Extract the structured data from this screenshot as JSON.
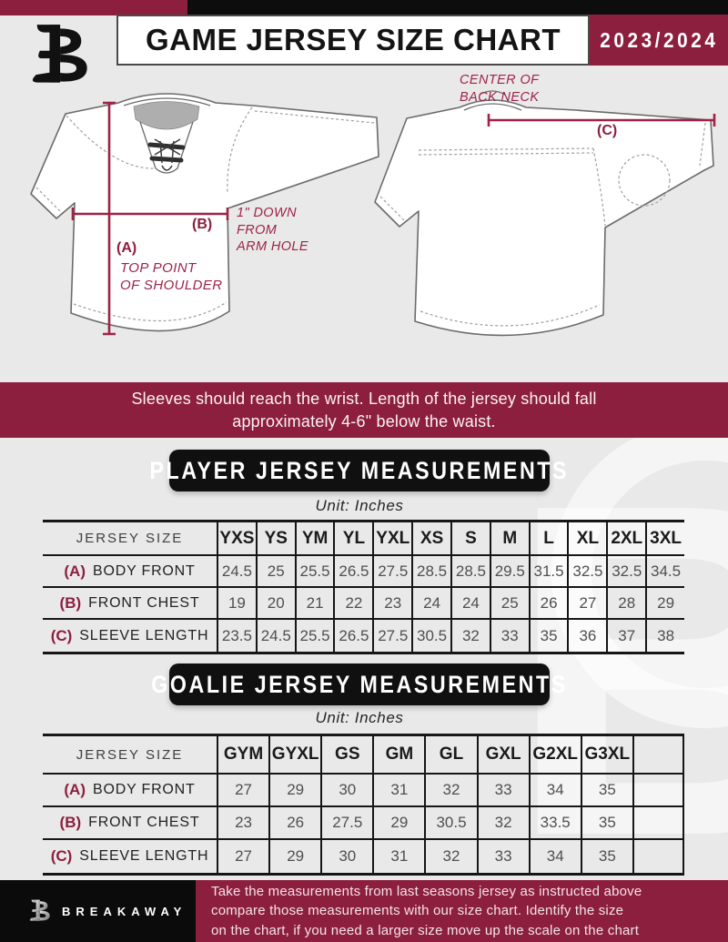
{
  "header": {
    "title": "GAME JERSEY SIZE CHART",
    "season": "2023/2024"
  },
  "brand": {
    "name": "BREAKAWAY"
  },
  "diagram": {
    "front": {
      "marker_a": "(A)",
      "caption_a_line1": "TOP POINT",
      "caption_a_line2": "OF SHOULDER",
      "marker_b": "(B)",
      "caption_b_line1": "1\" DOWN",
      "caption_b_line2": "FROM",
      "caption_b_line3": "ARM HOLE"
    },
    "back": {
      "marker_c": "(C)",
      "caption_c_line1": "CENTER OF",
      "caption_c_line2": "BACK NECK"
    }
  },
  "notice": {
    "line1": "Sleeves should reach the wrist. Length of the jersey should fall",
    "line2": "approximately 4-6\" below the waist."
  },
  "player_section": {
    "title": "PLAYER JERSEY MEASUREMENTS",
    "unit": "Unit: Inches",
    "table": {
      "corner": "JERSEY SIZE",
      "sizes": [
        "YXS",
        "YS",
        "YM",
        "YL",
        "YXL",
        "XS",
        "S",
        "M",
        "L",
        "XL",
        "2XL",
        "3XL"
      ],
      "rows": [
        {
          "key": "(A)",
          "label": "BODY FRONT",
          "values": [
            "24.5",
            "25",
            "25.5",
            "26.5",
            "27.5",
            "28.5",
            "28.5",
            "29.5",
            "31.5",
            "32.5",
            "32.5",
            "34.5"
          ]
        },
        {
          "key": "(B)",
          "label": "FRONT CHEST",
          "values": [
            "19",
            "20",
            "21",
            "22",
            "23",
            "24",
            "24",
            "25",
            "26",
            "27",
            "28",
            "29"
          ]
        },
        {
          "key": "(C)",
          "label": "SLEEVE LENGTH",
          "values": [
            "23.5",
            "24.5",
            "25.5",
            "26.5",
            "27.5",
            "30.5",
            "32",
            "33",
            "35",
            "36",
            "37",
            "38"
          ]
        }
      ]
    }
  },
  "goalie_section": {
    "title": "GOALIE JERSEY MEASUREMENTS",
    "unit": "Unit: Inches",
    "table": {
      "corner": "JERSEY SIZE",
      "sizes": [
        "GYM",
        "GYXL",
        "GS",
        "GM",
        "GL",
        "GXL",
        "G2XL",
        "G3XL",
        ""
      ],
      "rows": [
        {
          "key": "(A)",
          "label": "BODY FRONT",
          "values": [
            "27",
            "29",
            "30",
            "31",
            "32",
            "33",
            "34",
            "35",
            ""
          ]
        },
        {
          "key": "(B)",
          "label": "FRONT CHEST",
          "values": [
            "23",
            "26",
            "27.5",
            "29",
            "30.5",
            "32",
            "33.5",
            "35",
            ""
          ]
        },
        {
          "key": "(C)",
          "label": "SLEEVE LENGTH",
          "values": [
            "27",
            "29",
            "30",
            "31",
            "32",
            "33",
            "34",
            "35",
            ""
          ]
        }
      ]
    }
  },
  "footer": {
    "line1": "Take the measurements from last seasons jersey as instructed above",
    "line2": "compare those measurements  with our size chart. Identify the size",
    "line3": "on the chart, if you need a larger size move up the scale on the chart"
  },
  "colors": {
    "maroon": "#8d1f3e",
    "accent": "#9e2347",
    "black": "#111111",
    "page_bg": "#e9e9e9"
  },
  "watermark": {
    "letter": "B"
  }
}
